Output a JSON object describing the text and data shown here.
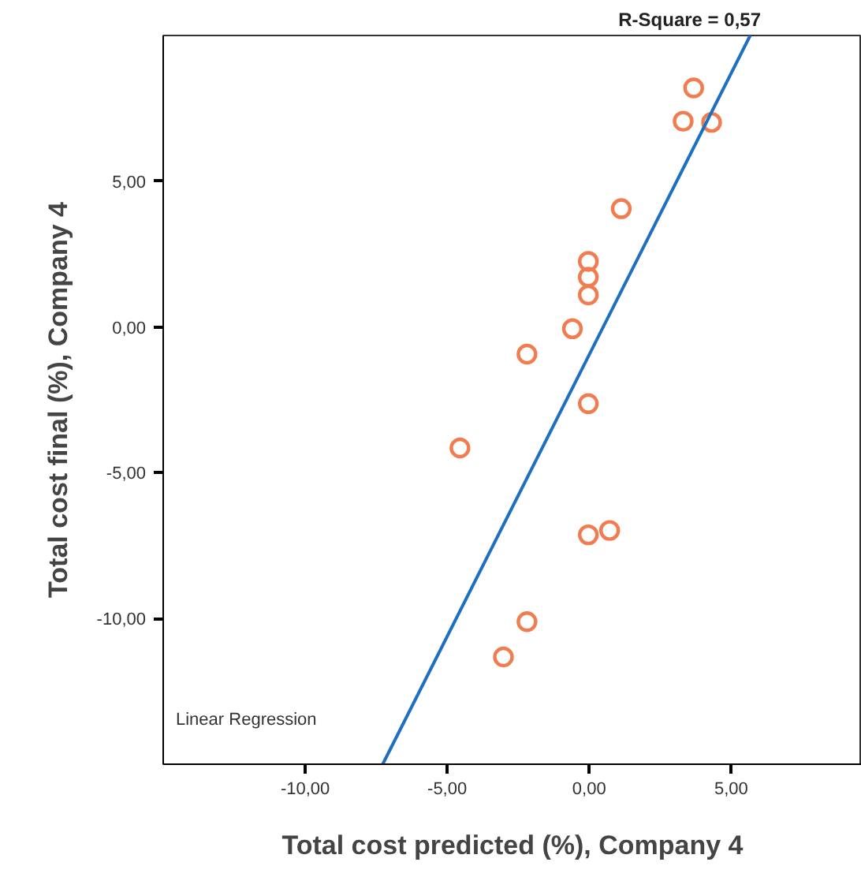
{
  "chart_data": {
    "type": "scatter",
    "xlabel": "Total cost predicted (%), Company 4",
    "ylabel": "Total cost final (%), Company 4",
    "xlim": [
      -15,
      9.6
    ],
    "ylim": [
      -15,
      10
    ],
    "xticks": [
      {
        "value": -10,
        "label": "-10,00"
      },
      {
        "value": -5,
        "label": "-5,00"
      },
      {
        "value": 0,
        "label": "0,00"
      },
      {
        "value": 5,
        "label": "5,00"
      }
    ],
    "yticks": [
      {
        "value": -10,
        "label": "-10,00"
      },
      {
        "value": -5,
        "label": "-5,00"
      },
      {
        "value": 0,
        "label": "0,00"
      },
      {
        "value": 5,
        "label": "5,00"
      }
    ],
    "grid": false,
    "series": [
      {
        "marker": "circle",
        "color": "#f07c50",
        "x": [
          3.68,
          3.31,
          4.31,
          1.13,
          -0.03,
          -0.03,
          -0.03,
          -0.59,
          -2.19,
          -0.03,
          -4.55,
          -0.03,
          0.72,
          -2.19,
          -3.02
        ],
        "values": [
          8.2,
          7.06,
          7.02,
          4.06,
          2.25,
          1.71,
          1.1,
          -0.06,
          -0.93,
          -2.63,
          -4.15,
          -7.13,
          -6.98,
          -10.11,
          -11.32
        ]
      },
      {
        "type": "line",
        "color": "#1f6fc0",
        "x": [
          -7.27,
          5.67
        ],
        "values": [
          -15,
          10
        ]
      }
    ],
    "annotations": [
      "R-Square = 0,57",
      "Linear Regression"
    ]
  }
}
